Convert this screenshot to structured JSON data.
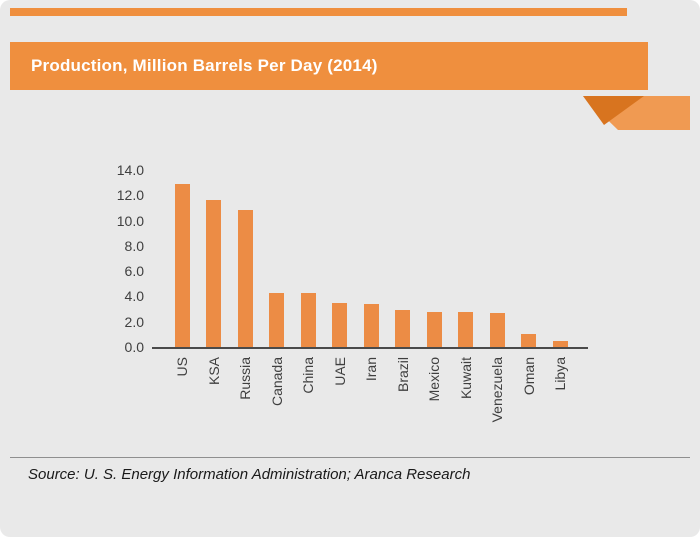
{
  "banner": {
    "title": "Production, Million Barrels Per Day (2014)"
  },
  "footer": {
    "source": "Source: U. S. Energy Information Administration; Aranca Research"
  },
  "colors": {
    "accent": "#ef8f3e",
    "accent_dark": "#d8741f",
    "bar": "#ec8c45",
    "background": "#e9e9e9",
    "axis_line": "#4a4a4a",
    "tick_text": "#3f3f3f",
    "title_text": "#ffffff",
    "source_text": "#1a1a1a",
    "divider": "#8f8f8f"
  },
  "chart_data": {
    "type": "bar",
    "title": "Production, Million Barrels Per Day (2014)",
    "categories": [
      "US",
      "KSA",
      "Russia",
      "Canada",
      "China",
      "UAE",
      "Iran",
      "Brazil",
      "Mexico",
      "Kuwait",
      "Venezuela",
      "Oman",
      "Libya"
    ],
    "values": [
      12.9,
      11.6,
      10.8,
      4.3,
      4.3,
      3.5,
      3.4,
      2.9,
      2.8,
      2.8,
      2.7,
      1.0,
      0.5
    ],
    "xlabel": "",
    "ylabel": "",
    "ylim": [
      0,
      14
    ],
    "ytick_step": 2,
    "ytick_labels": [
      "0.0",
      "2.0",
      "4.0",
      "6.0",
      "8.0",
      "10.0",
      "12.0",
      "14.0"
    ],
    "grid": false,
    "legend": false,
    "legend_position": "none"
  }
}
